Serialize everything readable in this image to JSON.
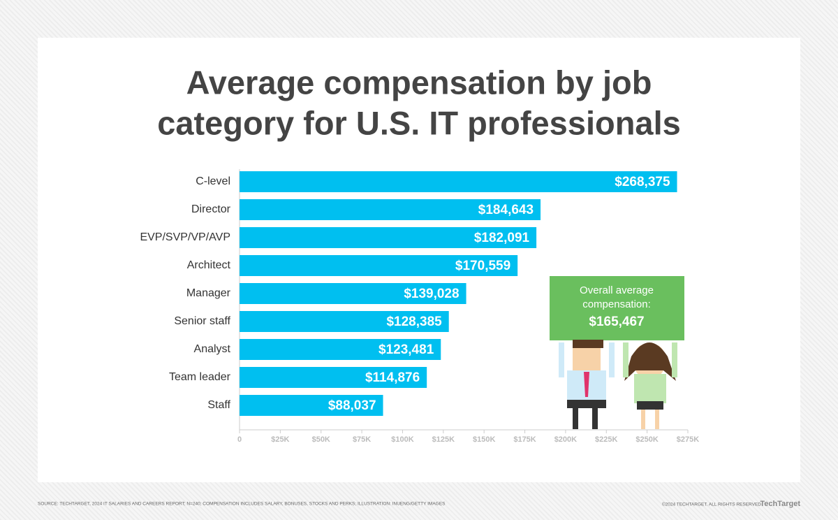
{
  "chart_data": {
    "type": "hbar",
    "title": [
      "Average compensation by job",
      "category for U.S. IT professionals"
    ],
    "categories": [
      "C-level",
      "Director",
      "EVP/SVP/VP/AVP",
      "Architect",
      "Manager",
      "Senior staff",
      "Analyst",
      "Team leader",
      "Staff"
    ],
    "values": [
      268375,
      184643,
      182091,
      170559,
      139028,
      128385,
      123481,
      114876,
      88037
    ],
    "value_labels": [
      "$268,375",
      "$184,643",
      "$182,091",
      "$170,559",
      "$139,028",
      "$128,385",
      "$123,481",
      "$114,876",
      "$88,037"
    ],
    "color": "#00bff0",
    "xlim": [
      0,
      275000
    ],
    "xticks": [
      0,
      {
        "value": 25000,
        "label": "$25K"
      },
      {
        "value": 50000,
        "label": "$50K"
      },
      {
        "value": 75000,
        "label": "$75K"
      },
      {
        "value": 100000,
        "label": "$100K"
      },
      {
        "value": 125000,
        "label": "$125K"
      },
      {
        "value": 150000,
        "label": "$150K"
      },
      {
        "value": 175000,
        "label": "$175K"
      },
      {
        "value": 200000,
        "label": "$200K"
      },
      {
        "value": 225000,
        "label": "$225K"
      },
      {
        "value": 250000,
        "label": "$250K"
      },
      {
        "value": 275000,
        "label": "$275K"
      }
    ],
    "annotation": {
      "text": [
        "Overall average",
        "compensation:"
      ],
      "value": 165467,
      "value_label": "$165,467",
      "color": "#6abf5e"
    }
  },
  "footer": {
    "source": "SOURCE: TECHTARGET, 2024 IT SALARIES AND CAREERS REPORT; N=240; COMPENSATION INCLUDES SALARY, BONUSES, STOCKS AND PERKS; ILLUSTRATION: INUENG/GETTY IMAGES",
    "copyright": "©2024 TECHTARGET. ALL RIGHTS RESERVED",
    "logo": "TechTarget"
  }
}
